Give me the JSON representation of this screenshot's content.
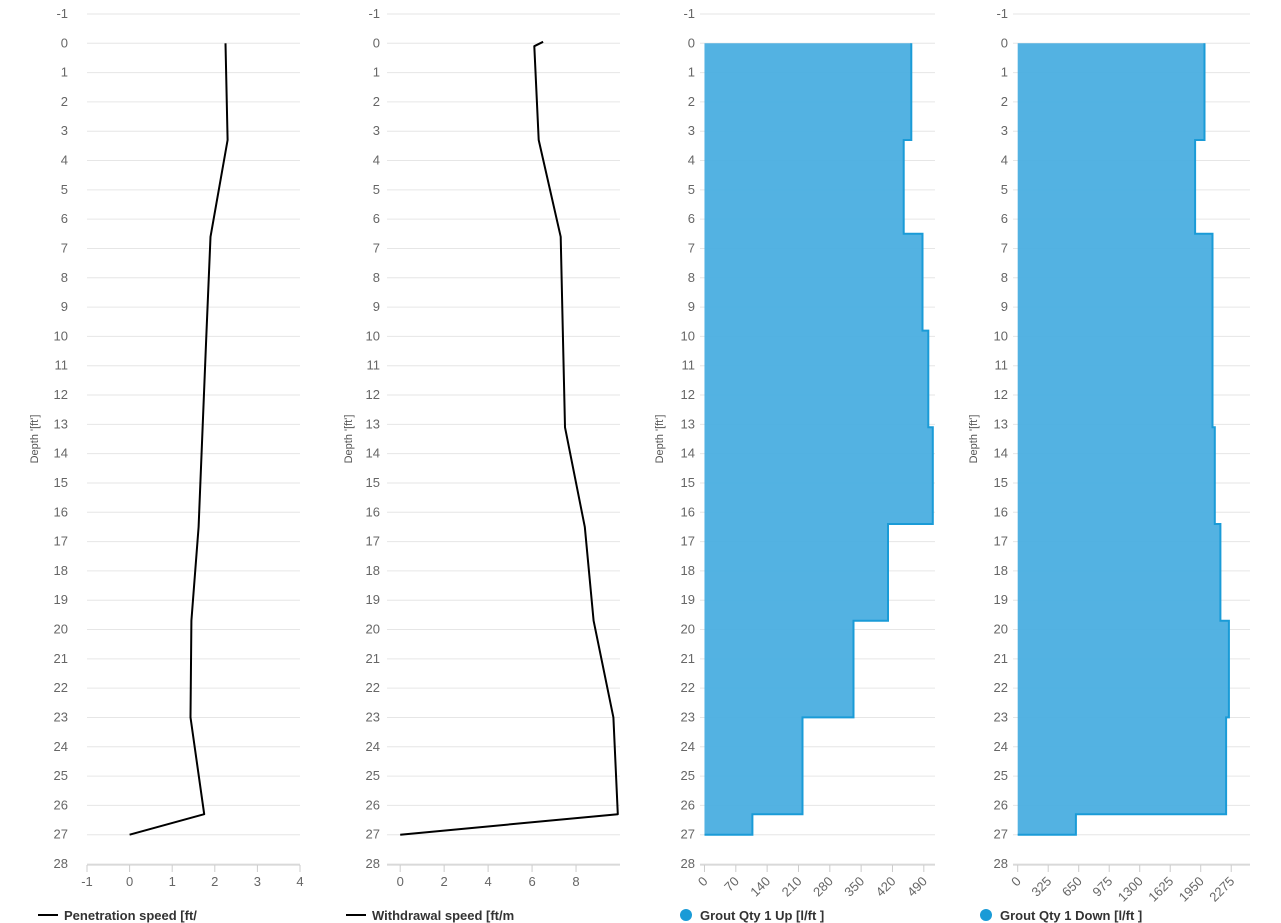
{
  "chart_data": [
    {
      "type": "line",
      "ylabel": "Depth '[ft']",
      "y_reversed": true,
      "ylim": [
        -1,
        28
      ],
      "y_ticks": [
        "-1",
        "0",
        "1",
        "2",
        "3",
        "4",
        "5",
        "6",
        "7",
        "8",
        "9",
        "10",
        "11",
        "12",
        "13",
        "14",
        "15",
        "16",
        "17",
        "18",
        "19",
        "20",
        "21",
        "22",
        "23",
        "24",
        "25",
        "26",
        "27",
        "28"
      ],
      "xlim": [
        -1,
        4
      ],
      "x_ticks": [
        "-1",
        "0",
        "1",
        "2",
        "3",
        "4"
      ],
      "series": [
        {
          "name": "Penetration speed [ft/",
          "color": "#000000",
          "points": [
            [
              2.25,
              0
            ],
            [
              2.3,
              3.3
            ],
            [
              1.9,
              6.6
            ],
            [
              1.8,
              10.0
            ],
            [
              1.62,
              16.5
            ],
            [
              1.45,
              19.7
            ],
            [
              1.43,
              23.0
            ],
            [
              1.75,
              26.3
            ],
            [
              0,
              27.0
            ]
          ]
        }
      ]
    },
    {
      "type": "line",
      "ylabel": "Depth '[ft']",
      "y_reversed": true,
      "ylim": [
        -1,
        28
      ],
      "y_ticks": [
        "-1",
        "0",
        "1",
        "2",
        "3",
        "4",
        "5",
        "6",
        "7",
        "8",
        "9",
        "10",
        "11",
        "12",
        "13",
        "14",
        "15",
        "16",
        "17",
        "18",
        "19",
        "20",
        "21",
        "22",
        "23",
        "24",
        "25",
        "26",
        "27",
        "28"
      ],
      "xlim": [
        -0.6,
        10
      ],
      "x_ticks": [
        "0",
        "2",
        "4",
        "6",
        "8"
      ],
      "series": [
        {
          "name": "Withdrawal speed [ft/m",
          "color": "#000000",
          "points": [
            [
              6.5,
              -0.05
            ],
            [
              6.1,
              0.1
            ],
            [
              6.3,
              3.3
            ],
            [
              7.3,
              6.6
            ],
            [
              7.4,
              9.8
            ],
            [
              7.5,
              13.1
            ],
            [
              8.4,
              16.5
            ],
            [
              8.8,
              19.7
            ],
            [
              9.7,
              23.0
            ],
            [
              9.9,
              26.3
            ],
            [
              0,
              27.0
            ]
          ]
        }
      ]
    },
    {
      "type": "area",
      "ylabel": "Depth '[ft']",
      "y_reversed": true,
      "ylim": [
        -1,
        28
      ],
      "y_ticks": [
        "-1",
        "0",
        "1",
        "2",
        "3",
        "4",
        "5",
        "6",
        "7",
        "8",
        "9",
        "10",
        "11",
        "12",
        "13",
        "14",
        "15",
        "16",
        "17",
        "18",
        "19",
        "20",
        "21",
        "22",
        "23",
        "24",
        "25",
        "26",
        "27",
        "28"
      ],
      "xlim": [
        -10,
        515
      ],
      "x_ticks": [
        "0",
        "70",
        "140",
        "210",
        "280",
        "350",
        "420",
        "490"
      ],
      "series": [
        {
          "name": "Grout Qty 1 Up [l/ft ]",
          "color": "#1a9bd7",
          "fill": "#4aaee0",
          "steps": [
            [
              0,
              3.3,
              462
            ],
            [
              3.3,
              6.5,
              445
            ],
            [
              6.5,
              9.8,
              487
            ],
            [
              9.8,
              13.1,
              500
            ],
            [
              13.1,
              16.4,
              510
            ],
            [
              16.4,
              19.7,
              410
            ],
            [
              19.7,
              23.0,
              333
            ],
            [
              23.0,
              26.3,
              219
            ],
            [
              26.3,
              27.0,
              107
            ]
          ]
        }
      ]
    },
    {
      "type": "area",
      "ylabel": "Depth '[ft']",
      "y_reversed": true,
      "ylim": [
        -1,
        28
      ],
      "y_ticks": [
        "-1",
        "0",
        "1",
        "2",
        "3",
        "4",
        "5",
        "6",
        "7",
        "8",
        "9",
        "10",
        "11",
        "12",
        "13",
        "14",
        "15",
        "16",
        "17",
        "18",
        "19",
        "20",
        "21",
        "22",
        "23",
        "24",
        "25",
        "26",
        "27",
        "28"
      ],
      "xlim": [
        -50,
        2475
      ],
      "x_ticks": [
        "0",
        "325",
        "650",
        "975",
        "1300",
        "1625",
        "1950",
        "2275"
      ],
      "series": [
        {
          "name": "Grout Qty 1 Down [l/ft ]",
          "color": "#1a9bd7",
          "fill": "#4aaee0",
          "steps": [
            [
              0,
              3.3,
              1990
            ],
            [
              3.3,
              6.5,
              1890
            ],
            [
              6.5,
              13.1,
              2075
            ],
            [
              13.1,
              16.4,
              2100
            ],
            [
              16.4,
              19.7,
              2160
            ],
            [
              19.7,
              23.0,
              2250
            ],
            [
              23.0,
              26.3,
              2220
            ],
            [
              26.3,
              27.0,
              620
            ]
          ]
        }
      ]
    }
  ]
}
